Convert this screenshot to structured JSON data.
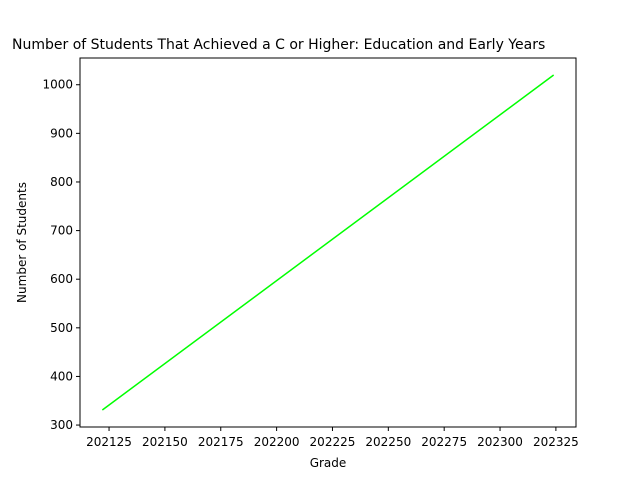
{
  "chart_data": {
    "type": "line",
    "title": "Number of Students That Achieved a C or Higher: Education and Early Years",
    "xlabel": "Grade",
    "ylabel": "Number of Students",
    "x": [
      202122,
      202324
    ],
    "series": [
      {
        "values": [
          331,
          1020
        ],
        "color": "#00ff00"
      }
    ],
    "xticks": [
      202125,
      202150,
      202175,
      202200,
      202225,
      202250,
      202275,
      202300,
      202325
    ],
    "yticks": [
      300,
      400,
      500,
      600,
      700,
      800,
      900,
      1000
    ],
    "xlim": [
      202112,
      202334
    ],
    "ylim": [
      296,
      1055
    ],
    "grid": false,
    "legend": "none"
  }
}
